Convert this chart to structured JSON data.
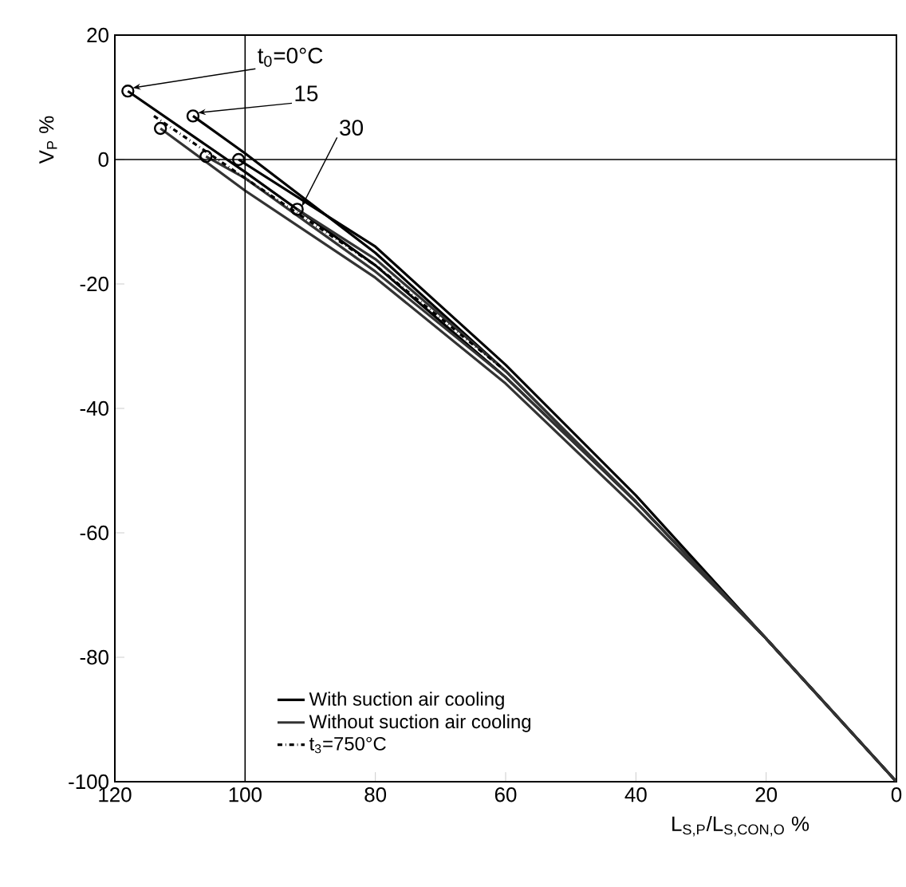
{
  "chart_data": {
    "type": "line",
    "xlabel": "L$_{S,P}$/L$_{S,CON,O}$  %",
    "ylabel": "V$_{P}$  %",
    "xlim": [
      120,
      0
    ],
    "ylim": [
      -100,
      20
    ],
    "xticks": [
      120,
      100,
      80,
      60,
      40,
      20,
      0
    ],
    "yticks": [
      -100,
      -80,
      -60,
      -40,
      -20,
      0,
      20
    ],
    "grid": false,
    "legend": "bottom left",
    "line_style": "solid",
    "series": [
      {
        "name": "With suction air cooling",
        "color": "#000000",
        "x": [
          118,
          100,
          80,
          60,
          40,
          20,
          0
        ],
        "values": [
          11,
          -2,
          -17,
          -35,
          -55,
          -77,
          -100
        ]
      },
      {
        "color": "#000000",
        "x": [
          108,
          100,
          80,
          60,
          40,
          20,
          0
        ],
        "values": [
          7,
          1,
          -15,
          -34,
          -55,
          -77,
          -100
        ]
      },
      {
        "color": "#000000",
        "x": [
          101,
          80,
          60,
          40,
          20,
          0
        ],
        "values": [
          0,
          -14,
          -33,
          -54,
          -77,
          -100
        ]
      },
      {
        "name": "Without suction air cooling",
        "color": "#333333",
        "x": [
          113,
          100,
          80,
          60,
          40,
          20,
          0
        ],
        "values": [
          5,
          -5,
          -19,
          -36,
          -56,
          -77,
          -100
        ]
      },
      {
        "color": "#333333",
        "x": [
          106,
          100,
          80,
          60,
          40,
          20,
          0
        ],
        "values": [
          0.5,
          -3,
          -18,
          -35,
          -55,
          -77,
          -100
        ]
      },
      {
        "color": "#333333",
        "x": [
          92,
          80,
          60,
          40,
          20,
          0
        ],
        "values": [
          -8,
          -16,
          -34,
          -55,
          -77,
          -100
        ]
      },
      {
        "name": "t$_{3}$=750°C",
        "color": "#000000",
        "line_style": "dashdot",
        "x": [
          114,
          100,
          80,
          60
        ],
        "values": [
          7,
          -3,
          -17,
          -34
        ]
      },
      {
        "type": "scatter",
        "marker": "circle",
        "color": "#000000",
        "x": [
          118,
          113,
          108,
          106,
          101,
          92
        ],
        "values": [
          11,
          5,
          7,
          0.5,
          0,
          -8
        ]
      }
    ],
    "ref_lines": [
      {
        "axis": "y",
        "value": 0
      },
      {
        "axis": "x",
        "value": 100
      }
    ],
    "annotations": [
      {
        "text": "t$_{0}$=0°C",
        "x": 118,
        "y": 11
      },
      {
        "text": "15",
        "x": 108,
        "y": 7
      },
      {
        "text": "30",
        "x": 92,
        "y": -8
      }
    ]
  }
}
